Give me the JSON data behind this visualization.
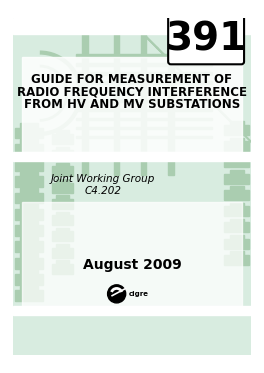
{
  "bg_color": "#d8ece0",
  "white_bg": "#ffffff",
  "border_color": "#000000",
  "number": "391",
  "number_fontsize": 28,
  "title_line1": "GUIDE FOR MEASUREMENT OF",
  "title_line2": "RADIO FREQUENCY INTERFERENCE",
  "title_line3": "FROM HV AND MV SUBSTATIONS",
  "title_fontsize": 8.5,
  "subtitle_line1": "Joint Working Group",
  "subtitle_line2": "C4.202",
  "subtitle_fontsize": 7.5,
  "date_text": "August 2009",
  "date_fontsize": 10,
  "green_light": "#c5dfc9",
  "green_medium": "#aacdb0",
  "green_dark": "#8db89a"
}
